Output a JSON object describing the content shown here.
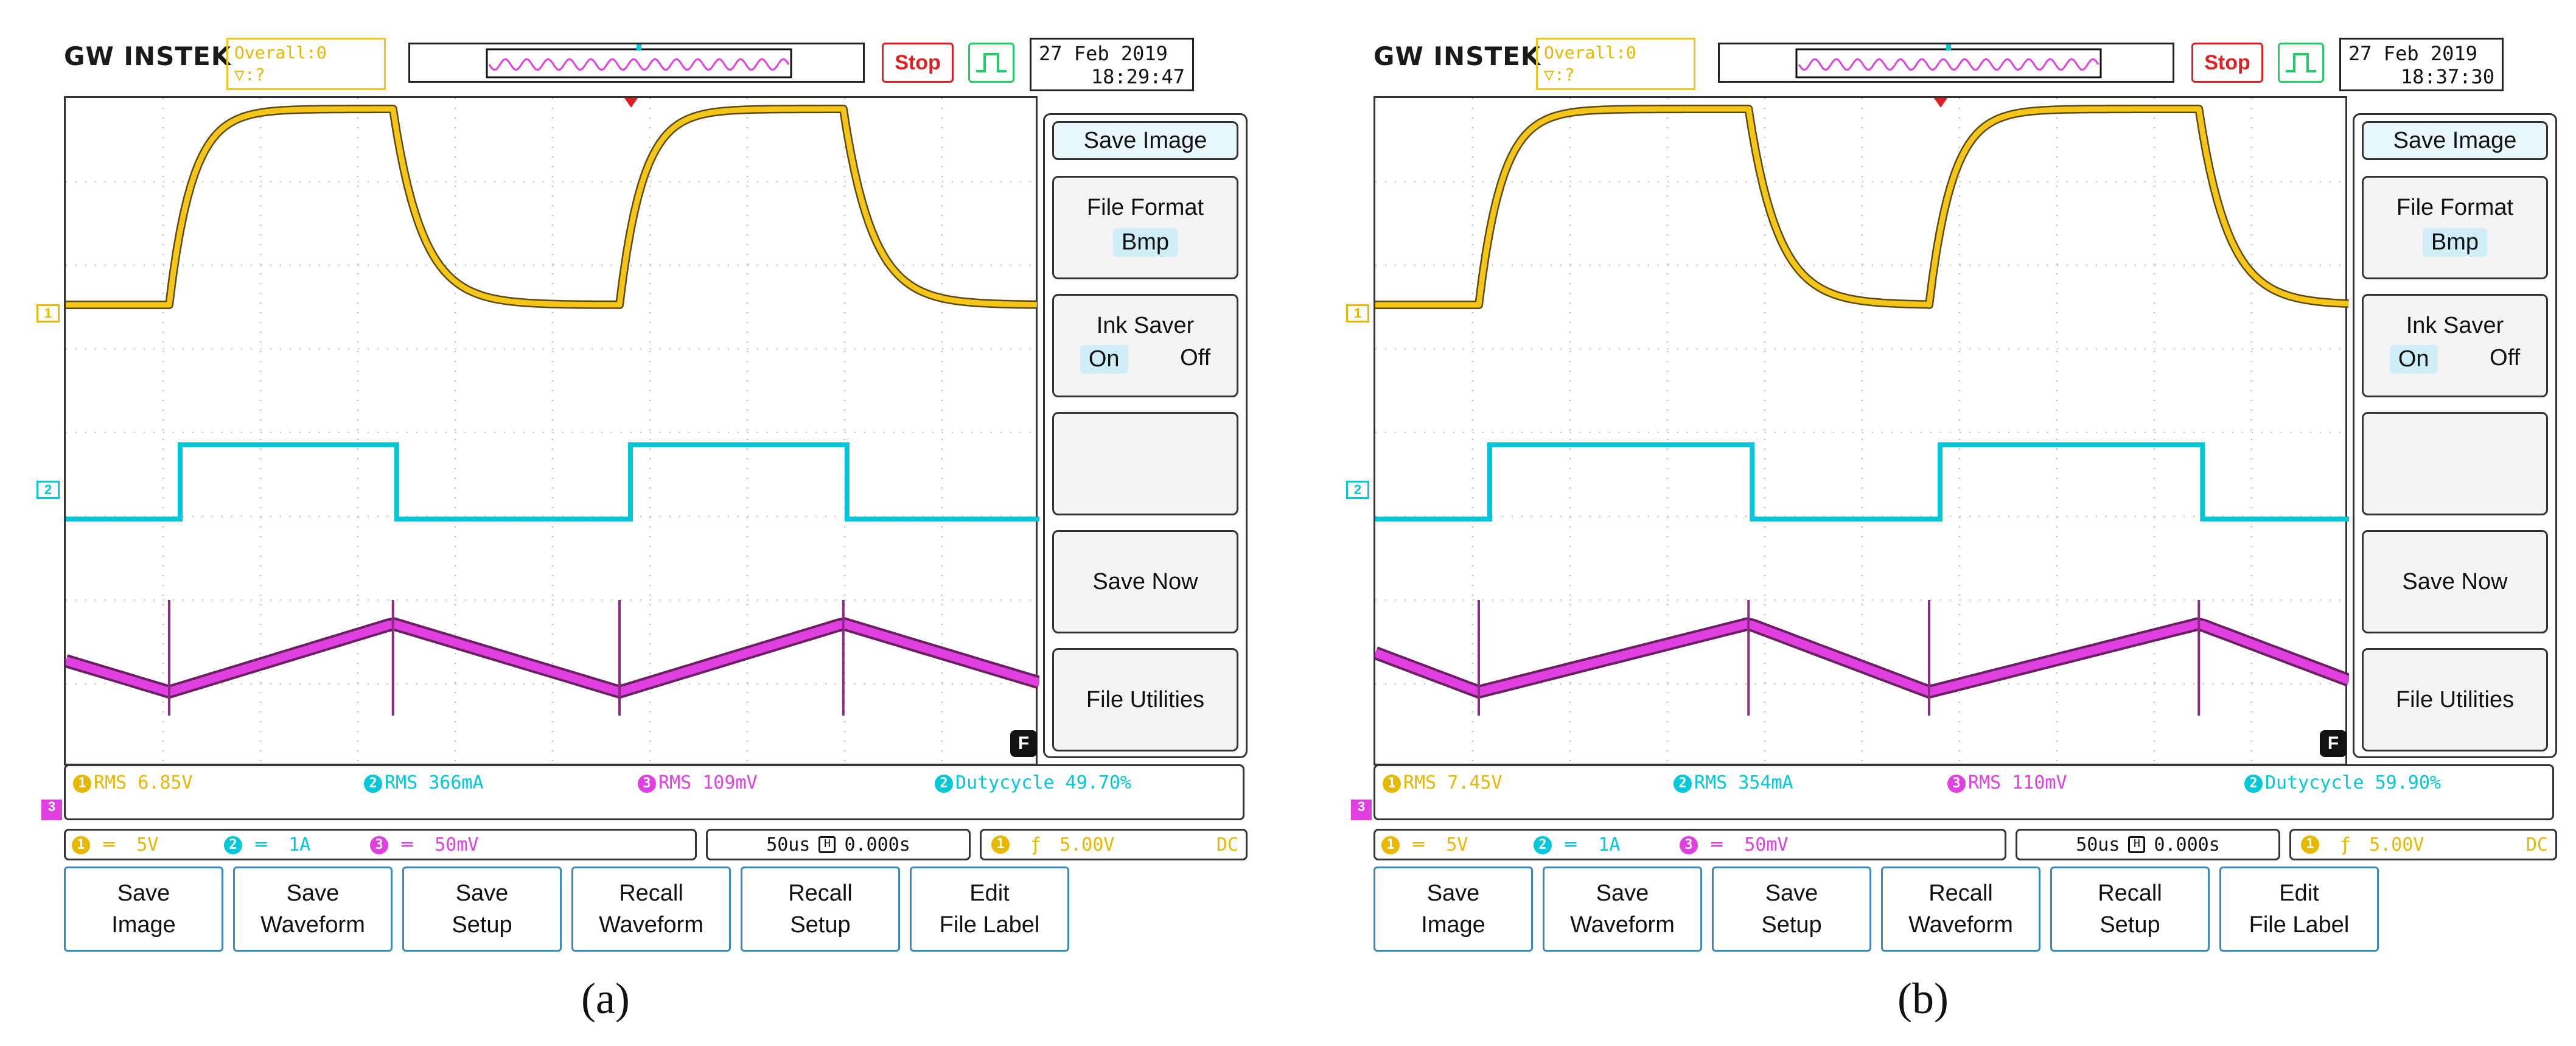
{
  "panels": [
    {
      "caption": "(a)",
      "brand": "GW INSTEK",
      "trigger_status": [
        "Overall:0",
        "▽:?"
      ],
      "stop_label": "Stop",
      "clock": {
        "date": "27 Feb 2019",
        "time": "18:29:47"
      },
      "side_menu": {
        "title": "Save Image",
        "file_format_label": "File Format",
        "file_format_value": "Bmp",
        "ink_saver_label": "Ink Saver",
        "ink_on": "On",
        "ink_off": "Off",
        "save_now": "Save Now",
        "file_utilities": "File Utilities"
      },
      "measurements": {
        "m1": "RMS 6.85V",
        "m2": "RMS 366mA",
        "m3": "RMS 109mV",
        "m4": "Dutycycle 49.70%"
      },
      "scales": {
        "ch1": "5V",
        "ch2": "1A",
        "ch3": "50mV",
        "timebase": "50us",
        "position": "0.000s",
        "trigger_level": "5.00V",
        "coupling": "DC"
      },
      "channel_markers": {
        "ch1": "1",
        "ch2": "2",
        "ch3": "3"
      },
      "f_badge": "F",
      "buttons": [
        "Save\nImage",
        "Save\nWaveform",
        "Save\nSetup",
        "Recall\nWaveform",
        "Recall\nSetup",
        "Edit\nFile Label"
      ],
      "waveform": {
        "duty": 0.497
      }
    },
    {
      "caption": "(b)",
      "brand": "GW INSTEK",
      "trigger_status": [
        "Overall:0",
        "▽:?"
      ],
      "stop_label": "Stop",
      "clock": {
        "date": "27 Feb 2019",
        "time": "18:37:30"
      },
      "side_menu": {
        "title": "Save Image",
        "file_format_label": "File Format",
        "file_format_value": "Bmp",
        "ink_saver_label": "Ink Saver",
        "ink_on": "On",
        "ink_off": "Off",
        "save_now": "Save Now",
        "file_utilities": "File Utilities"
      },
      "measurements": {
        "m1": "RMS 7.45V",
        "m2": "RMS 354mA",
        "m3": "RMS 110mV",
        "m4": "Dutycycle 59.90%"
      },
      "scales": {
        "ch1": "5V",
        "ch2": "1A",
        "ch3": "50mV",
        "timebase": "50us",
        "position": "0.000s",
        "trigger_level": "5.00V",
        "coupling": "DC"
      },
      "channel_markers": {
        "ch1": "1",
        "ch2": "2",
        "ch3": "3"
      },
      "f_badge": "F",
      "buttons": [
        "Save\nImage",
        "Save\nWaveform",
        "Save\nSetup",
        "Recall\nWaveform",
        "Recall\nSetup",
        "Edit\nFile Label"
      ],
      "waveform": {
        "duty": 0.599
      }
    }
  ],
  "colors": {
    "ch1": "#f5c518",
    "ch2": "#00c8d8",
    "ch3": "#e040e0",
    "frame": "#333333"
  }
}
